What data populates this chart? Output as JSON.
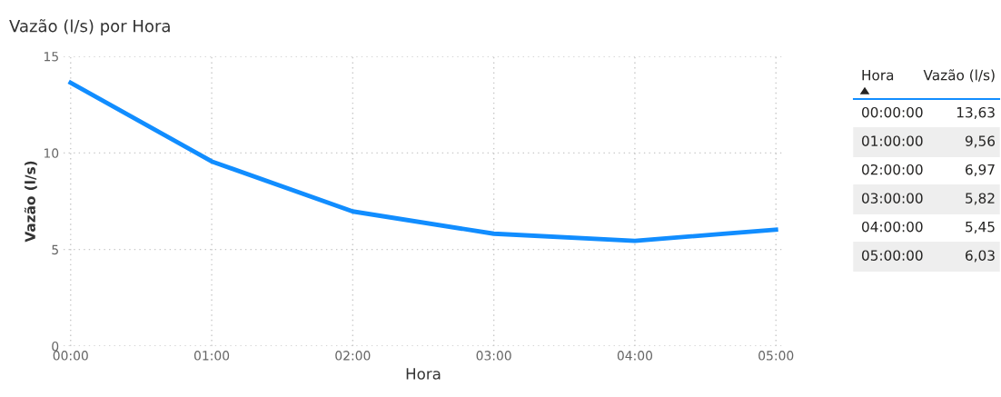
{
  "chart_data": {
    "type": "line",
    "title": "Vazão (l/s) por Hora",
    "xlabel": "Hora",
    "ylabel": "Vazão (l/s)",
    "categories": [
      "00:00",
      "01:00",
      "02:00",
      "03:00",
      "04:00",
      "05:00"
    ],
    "series": [
      {
        "color": "#118dff",
        "values": [
          13.63,
          9.56,
          6.97,
          5.82,
          5.45,
          6.03
        ]
      }
    ],
    "ylim": [
      0,
      15
    ],
    "yticks": [
      0,
      5,
      10,
      15
    ],
    "grid": true,
    "marker": "none",
    "line_style": "solid",
    "legend": false,
    "annotations": [
      "Hora",
      "Vazão (l/s)",
      "00:00:00",
      "01:00:00",
      "02:00:00",
      "03:00:00",
      "04:00:00",
      "05:00:00",
      "13,63",
      "9,56",
      "6,97",
      "5,82",
      "5,45",
      "6,03"
    ]
  }
}
